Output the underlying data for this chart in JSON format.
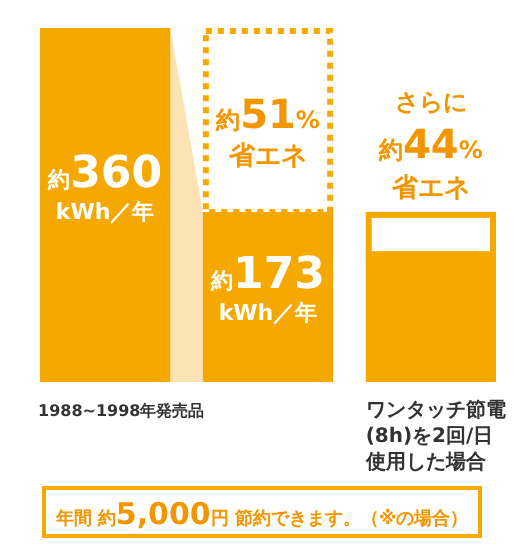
{
  "chart_data": {
    "type": "bar",
    "stacked": true,
    "categories": [
      "1988~1998年発売品",
      null,
      "ワンタッチ節電(8h)を2回/日使用した場合"
    ],
    "series": [
      {
        "color": "#f5a800",
        "values": [
          360,
          173,
          130
        ],
        "value_labels": [
          "約360 kWh／年",
          "約173 kWh／年",
          null
        ]
      },
      {
        "color": "#f5a800",
        "values": [
          null,
          187,
          null
        ],
        "line_style": "dashed"
      },
      {
        "color": "#f5a800",
        "values": [
          null,
          null,
          43
        ],
        "line_style": "solid"
      }
    ],
    "annotations": [
      "約51%",
      "省エネ",
      "さらに",
      "約44%",
      "省エネ",
      "年間 約5,000円 節約できます。（※の場合）"
    ]
  }
}
